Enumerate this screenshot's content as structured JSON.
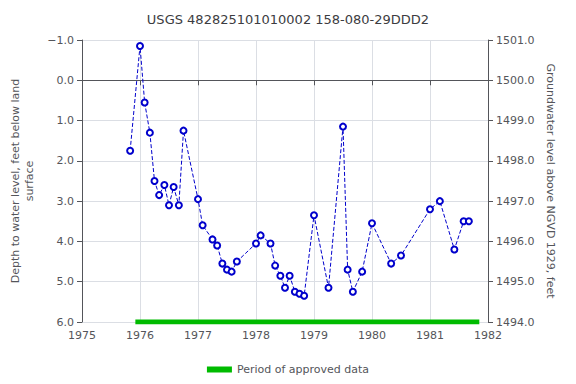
{
  "chart_data": {
    "type": "line",
    "title": "USGS 482825101010002 158-080-29DDD2",
    "ylabel": "Depth to water level, feet below land\nsurface",
    "y2label": "Groundwater level above NGVD 1929, feet",
    "xlim": [
      1975,
      1982
    ],
    "xticks": [
      1975,
      1976,
      1977,
      1978,
      1979,
      1980,
      1981,
      1982
    ],
    "ylim": [
      6.0,
      -1.0
    ],
    "yticks": [
      {
        "value": -1.0,
        "label": "−1.0"
      },
      {
        "value": 0.0,
        "label": "0.0"
      },
      {
        "value": 1.0,
        "label": "1.0"
      },
      {
        "value": 2.0,
        "label": "2.0"
      },
      {
        "value": 3.0,
        "label": "3.0"
      },
      {
        "value": 4.0,
        "label": "4.0"
      },
      {
        "value": 5.0,
        "label": "5.0"
      },
      {
        "value": 6.0,
        "label": "6.0"
      }
    ],
    "y2lim": [
      1494.0,
      1501.0
    ],
    "y2ticks": [
      {
        "value": 1494.0,
        "label": "1494.0"
      },
      {
        "value": 1495.0,
        "label": "1495.0"
      },
      {
        "value": 1496.0,
        "label": "1496.0"
      },
      {
        "value": 1497.0,
        "label": "1497.0"
      },
      {
        "value": 1498.0,
        "label": "1498.0"
      },
      {
        "value": 1499.0,
        "label": "1499.0"
      },
      {
        "value": 1500.0,
        "label": "1500.0"
      },
      {
        "value": 1501.0,
        "label": "1501.0"
      }
    ],
    "grid": true,
    "legend": "bottom",
    "series": [
      {
        "color": "#0000cc",
        "line_style": "dashed",
        "marker": "circle",
        "x": [
          1975.83,
          1976.0,
          1976.08,
          1976.17,
          1976.25,
          1976.33,
          1976.42,
          1976.5,
          1976.58,
          1976.67,
          1976.75,
          1977.0,
          1977.08,
          1977.25,
          1977.33,
          1977.42,
          1977.5,
          1977.58,
          1977.67,
          1978.0,
          1978.08,
          1978.25,
          1978.33,
          1978.42,
          1978.5,
          1978.58,
          1978.67,
          1978.75,
          1978.83,
          1979.0,
          1979.25,
          1979.5,
          1979.58,
          1979.67,
          1979.83,
          1980.0,
          1980.33,
          1980.5,
          1981.0,
          1981.17,
          1981.42,
          1981.58,
          1981.67
        ],
        "values": [
          1.75,
          -0.85,
          0.55,
          1.3,
          2.5,
          2.85,
          2.6,
          3.1,
          2.65,
          3.1,
          1.25,
          2.95,
          3.6,
          3.95,
          4.1,
          4.55,
          4.7,
          4.75,
          4.5,
          4.05,
          3.85,
          4.05,
          4.6,
          4.85,
          5.15,
          4.85,
          5.25,
          5.3,
          5.35,
          3.35,
          5.15,
          1.15,
          4.7,
          5.25,
          4.75,
          3.55,
          4.55,
          4.35,
          3.2,
          3.0,
          4.2,
          3.5,
          3.5
        ]
      },
      {
        "name": "Period of approved data",
        "color": "#00bb00",
        "line_style": "solid",
        "marker": "none",
        "x": [
          1975.92,
          1981.85
        ],
        "values": [
          6.0,
          6.0
        ]
      }
    ]
  }
}
